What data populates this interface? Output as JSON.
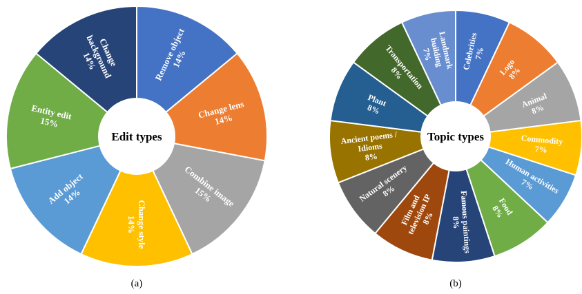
{
  "chart_data": [
    {
      "type": "pie",
      "variant": "donut",
      "center_label": "Edit types",
      "caption": "(a)",
      "slices": [
        {
          "lines": [
            "Remove object",
            "14%"
          ],
          "value": 14,
          "color": "#4472C4"
        },
        {
          "lines": [
            "Change lens",
            "14%"
          ],
          "value": 14,
          "color": "#ED7D31"
        },
        {
          "lines": [
            "Combine image",
            "15%"
          ],
          "value": 15,
          "color": "#A5A5A5"
        },
        {
          "lines": [
            "Change style",
            "14%"
          ],
          "value": 14,
          "color": "#FFC000"
        },
        {
          "lines": [
            "Add object",
            "14%"
          ],
          "value": 14,
          "color": "#5B9BD5"
        },
        {
          "lines": [
            "Entity edit",
            "15%"
          ],
          "value": 15,
          "color": "#70AD47"
        },
        {
          "lines": [
            "Change",
            "background",
            "14%"
          ],
          "value": 14,
          "color": "#264478"
        }
      ]
    },
    {
      "type": "pie",
      "variant": "donut",
      "center_label": "Topic types",
      "caption": "(b)",
      "slices": [
        {
          "lines": [
            "Celebrities",
            "7%"
          ],
          "value": 7,
          "color": "#4472C4"
        },
        {
          "lines": [
            "Logo",
            "8%"
          ],
          "value": 8,
          "color": "#ED7D31"
        },
        {
          "lines": [
            "Animal",
            "8%"
          ],
          "value": 8,
          "color": "#A5A5A5"
        },
        {
          "lines": [
            "Commodity",
            "7%"
          ],
          "value": 7,
          "color": "#FFC000"
        },
        {
          "lines": [
            "Human activities",
            "7%"
          ],
          "value": 7,
          "color": "#5B9BD5"
        },
        {
          "lines": [
            "Food",
            "8%"
          ],
          "value": 8,
          "color": "#70AD47"
        },
        {
          "lines": [
            "Famous paintings",
            "8%"
          ],
          "value": 8,
          "color": "#264478"
        },
        {
          "lines": [
            "Film and",
            "television IP",
            "8%"
          ],
          "value": 8,
          "color": "#9E480E"
        },
        {
          "lines": [
            "Natural scenery",
            "8%"
          ],
          "value": 8,
          "color": "#636363"
        },
        {
          "lines": [
            "Ancient poems /",
            "Idioms",
            "8%"
          ],
          "value": 8,
          "color": "#997300"
        },
        {
          "lines": [
            "Plant",
            "8%"
          ],
          "value": 8,
          "color": "#255E91"
        },
        {
          "lines": [
            "Transportation",
            "8%"
          ],
          "value": 8,
          "color": "#43682B"
        },
        {
          "lines": [
            "Landmark",
            "building",
            "7%"
          ],
          "value": 7,
          "color": "#698ED0"
        }
      ]
    }
  ]
}
